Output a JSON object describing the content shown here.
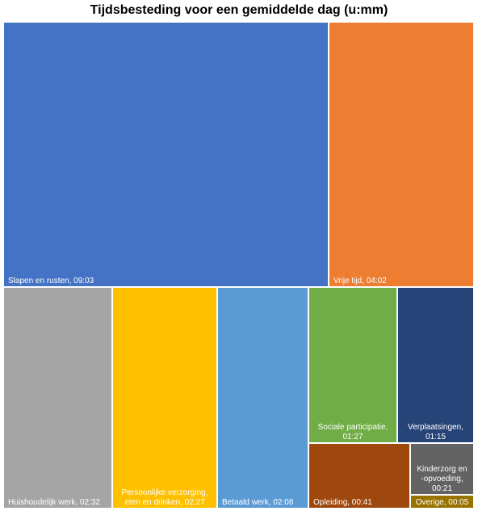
{
  "chart_data": {
    "type": "treemap",
    "title": "Tijdsbesteding voor een gemiddelde dag (u:mm)",
    "unit": "u:mm",
    "items": [
      {
        "label": "Slapen en rusten",
        "value": "09:03",
        "minutes": 543,
        "color": "#4472C4",
        "text_lines": [
          "Slapen en rusten, 09:03"
        ]
      },
      {
        "label": "Vrije tijd",
        "value": "04:02",
        "minutes": 242,
        "color": "#ED7D31",
        "text_lines": [
          "Vrije tijd, 04:02"
        ]
      },
      {
        "label": "Huishoudelijk werk",
        "value": "02:32",
        "minutes": 152,
        "color": "#A5A5A5",
        "text_lines": [
          "Huishoudelijk werk, 02:32"
        ]
      },
      {
        "label": "Persoonlijke verzorging, eten en drinken",
        "value": "02:27",
        "minutes": 147,
        "color": "#FFC000",
        "text_lines": [
          "Persoonlijke verzorging,",
          "eten en drinken, 02:27"
        ]
      },
      {
        "label": "Betaald werk",
        "value": "02:08",
        "minutes": 128,
        "color": "#5B9BD5",
        "text_lines": [
          "Betaald werk, 02:08"
        ]
      },
      {
        "label": "Sociale participatie",
        "value": "01:27",
        "minutes": 87,
        "color": "#70AD47",
        "text_lines": [
          "Sociale participatie,",
          "01:27"
        ]
      },
      {
        "label": "Verplaatsingen",
        "value": "01:15",
        "minutes": 75,
        "color": "#264478",
        "text_lines": [
          "Verplaatsingen,",
          "01:15"
        ]
      },
      {
        "label": "Opleiding",
        "value": "00:41",
        "minutes": 41,
        "color": "#9E480E",
        "text_lines": [
          "Opleiding, 00:41"
        ]
      },
      {
        "label": "Kinderzorg en -opvoeding",
        "value": "00:21",
        "minutes": 21,
        "color": "#636363",
        "text_lines": [
          "Kinderzorg en",
          "-opvoeding,",
          "00:21"
        ]
      },
      {
        "label": "Overige",
        "value": "00:05",
        "minutes": 5,
        "color": "#997300",
        "text_lines": [
          "Overige, 00:05"
        ]
      }
    ]
  }
}
